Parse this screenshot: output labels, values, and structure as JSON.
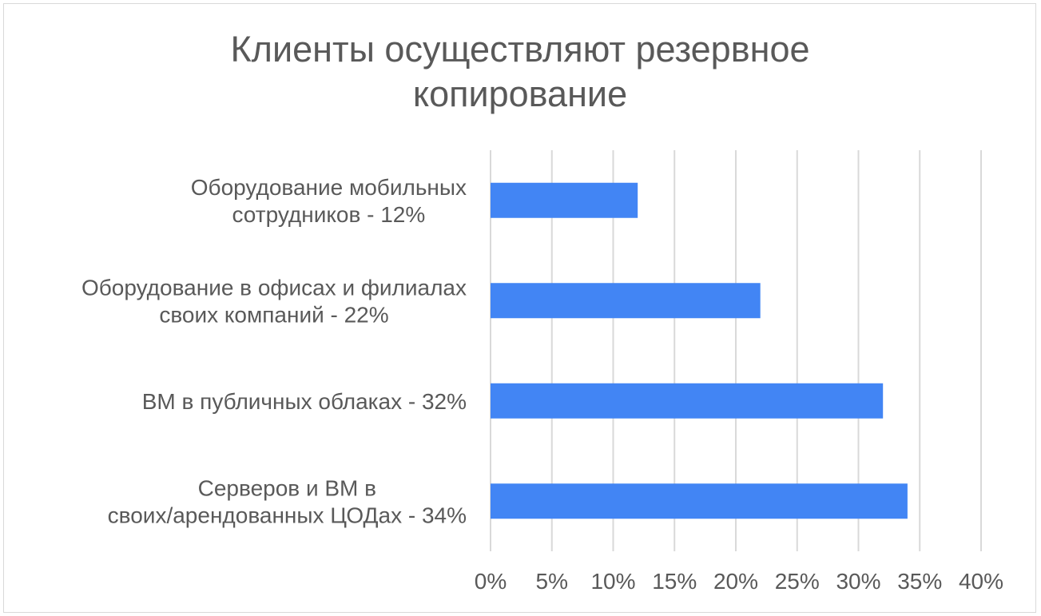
{
  "chart_data": {
    "type": "bar",
    "orientation": "horizontal",
    "title_lines": [
      "Клиенты осуществляют резервное",
      "копирование"
    ],
    "xlabel": "",
    "ylabel": "",
    "categories": [
      [
        "Оборудование мобильных",
        "сотрудников - 12%"
      ],
      [
        "Оборудование в офисах и филиалах",
        "своих компаний - 22%"
      ],
      [
        "ВМ в публичных облаках - 32%"
      ],
      [
        "Серверов и ВМ в",
        "своих/арендованных ЦОДах - 34%"
      ]
    ],
    "values": [
      12,
      22,
      32,
      34
    ],
    "xlim": [
      0,
      40
    ],
    "ticks": [
      0,
      5,
      10,
      15,
      20,
      25,
      30,
      35,
      40
    ],
    "tick_labels": [
      "0%",
      "5%",
      "10%",
      "15%",
      "20%",
      "25%",
      "30%",
      "35%",
      "40%"
    ],
    "grid": true,
    "legend": "none",
    "bar_color": "#4285f4",
    "grid_color": "#d9d9d9"
  }
}
